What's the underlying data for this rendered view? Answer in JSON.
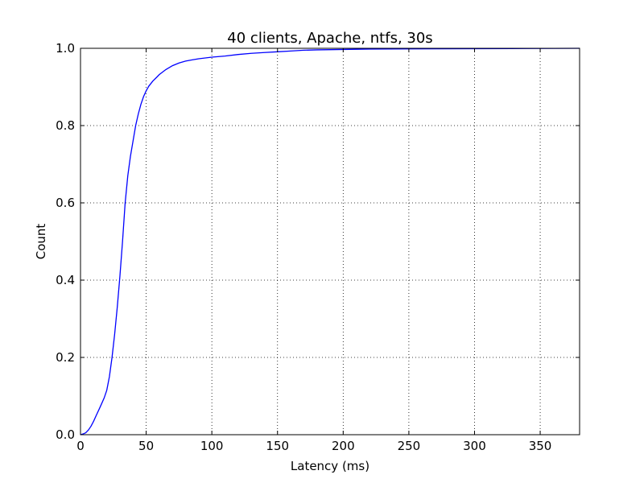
{
  "chart_data": {
    "type": "line",
    "title": "40 clients, Apache, ntfs, 30s",
    "xlabel": "Latency (ms)",
    "ylabel": "Count",
    "xlim": [
      0,
      380
    ],
    "ylim": [
      0,
      1.0
    ],
    "xticks": [
      0,
      50,
      100,
      150,
      200,
      250,
      300,
      350
    ],
    "yticks": [
      0.0,
      0.2,
      0.4,
      0.6,
      0.8,
      1.0
    ],
    "xtick_labels": [
      "0",
      "50",
      "100",
      "150",
      "200",
      "250",
      "300",
      "350"
    ],
    "ytick_labels": [
      "0.0",
      "0.2",
      "0.4",
      "0.6",
      "0.8",
      "1.0"
    ],
    "grid": true,
    "series": [
      {
        "color": "#0000ff",
        "x": [
          0,
          2,
          4,
          6,
          8,
          10,
          12,
          15,
          18,
          20,
          22,
          24,
          26,
          28,
          30,
          32,
          34,
          36,
          38,
          40,
          42,
          44,
          46,
          48,
          50,
          52,
          55,
          58,
          60,
          65,
          70,
          75,
          80,
          85,
          90,
          100,
          110,
          120,
          130,
          140,
          150,
          160,
          170,
          180,
          200,
          220,
          250,
          300,
          340,
          380
        ],
        "y": [
          0.0,
          0.002,
          0.005,
          0.012,
          0.022,
          0.035,
          0.05,
          0.072,
          0.095,
          0.115,
          0.15,
          0.2,
          0.26,
          0.33,
          0.41,
          0.5,
          0.6,
          0.67,
          0.72,
          0.76,
          0.8,
          0.83,
          0.855,
          0.875,
          0.89,
          0.902,
          0.915,
          0.925,
          0.932,
          0.945,
          0.955,
          0.962,
          0.967,
          0.97,
          0.973,
          0.977,
          0.98,
          0.984,
          0.987,
          0.989,
          0.991,
          0.993,
          0.995,
          0.996,
          0.997,
          0.998,
          0.9985,
          0.999,
          0.9995,
          1.0
        ]
      }
    ]
  }
}
